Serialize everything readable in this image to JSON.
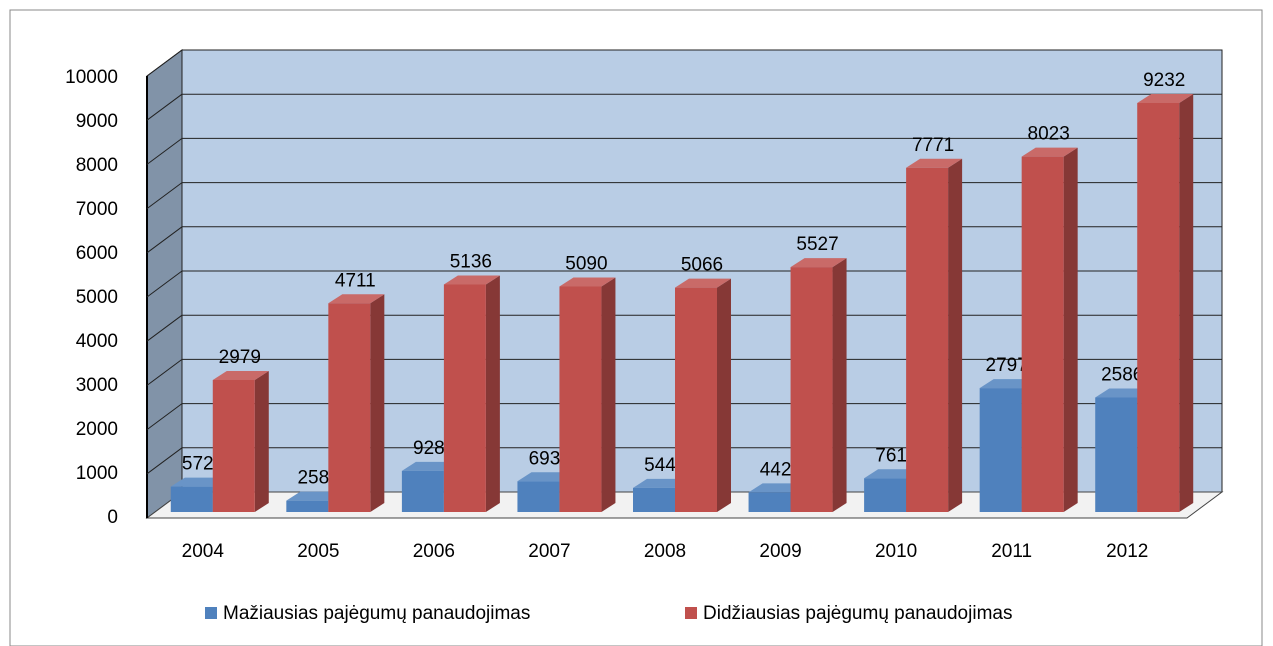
{
  "chart_data": {
    "type": "bar3d",
    "categories": [
      "2004",
      "2005",
      "2006",
      "2007",
      "2008",
      "2009",
      "2010",
      "2011",
      "2012"
    ],
    "series": [
      {
        "name": "Mažiausias pajėgumų panaudojimas",
        "color": "#4f81bd",
        "values": [
          572,
          258,
          928,
          693,
          544,
          442,
          761,
          2797,
          2586
        ]
      },
      {
        "name": "Didžiausias pajėgumų panaudojimas",
        "color": "#c0504d",
        "values": [
          2979,
          4711,
          5136,
          5090,
          5066,
          5527,
          7771,
          8023,
          9232
        ]
      }
    ],
    "ylim": [
      0,
      10000
    ],
    "yticks": [
      0,
      1000,
      2000,
      3000,
      4000,
      5000,
      6000,
      7000,
      8000,
      9000,
      10000
    ],
    "grid": true,
    "legend": "bottom"
  }
}
